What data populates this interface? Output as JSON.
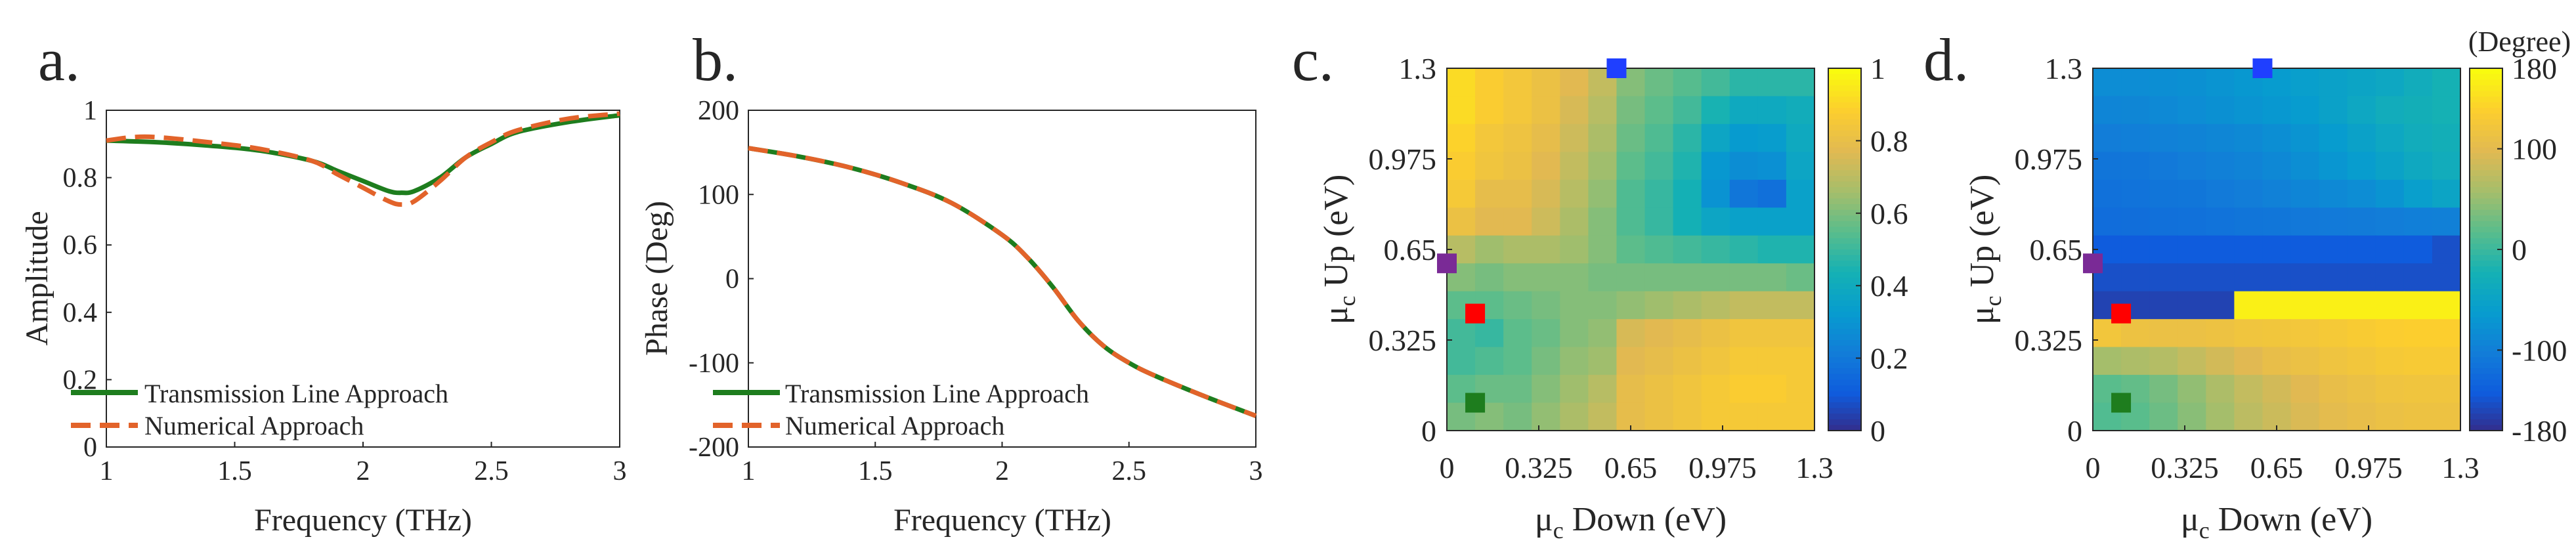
{
  "chart_data": [
    {
      "type": "line",
      "panel_label": "a.",
      "xlabel": "Frequency (THz)",
      "ylabel": "Amplitude",
      "xlim": [
        1,
        3
      ],
      "ylim": [
        0,
        1
      ],
      "xticks": [
        "1",
        "1.5",
        "2",
        "2.5",
        "3"
      ],
      "yticks": [
        "0",
        "0.2",
        "0.4",
        "0.6",
        "0.8",
        "1"
      ],
      "legend_position": "bottom-left",
      "series": [
        {
          "name": "Transmission Line Approach",
          "color": "#1e7d1e",
          "style": "solid",
          "x": [
            1,
            1.2,
            1.4,
            1.6,
            1.8,
            1.9,
            2,
            2.1,
            2.15,
            2.2,
            2.3,
            2.4,
            2.5,
            2.6,
            2.8,
            3
          ],
          "y": [
            0.91,
            0.905,
            0.895,
            0.88,
            0.85,
            0.82,
            0.79,
            0.76,
            0.755,
            0.76,
            0.8,
            0.86,
            0.9,
            0.935,
            0.965,
            0.985
          ]
        },
        {
          "name": "Numerical Approach",
          "color": "#e2632a",
          "style": "dashed",
          "x": [
            1,
            1.1,
            1.2,
            1.4,
            1.6,
            1.8,
            1.9,
            2,
            2.1,
            2.15,
            2.2,
            2.3,
            2.4,
            2.5,
            2.6,
            2.8,
            3
          ],
          "y": [
            0.91,
            0.92,
            0.92,
            0.905,
            0.885,
            0.85,
            0.81,
            0.77,
            0.73,
            0.72,
            0.73,
            0.79,
            0.86,
            0.905,
            0.94,
            0.975,
            0.99
          ]
        }
      ]
    },
    {
      "type": "line",
      "panel_label": "b.",
      "xlabel": "Frequency (THz)",
      "ylabel": "Phase (Deg)",
      "xlim": [
        1,
        3
      ],
      "ylim": [
        -200,
        200
      ],
      "xticks": [
        "1",
        "1.5",
        "2",
        "2.5",
        "3"
      ],
      "yticks": [
        "-200",
        "-100",
        "0",
        "100",
        "200"
      ],
      "legend_position": "bottom-left",
      "series": [
        {
          "name": "Transmission Line Approach",
          "color": "#1e7d1e",
          "style": "solid",
          "x": [
            1,
            1.2,
            1.4,
            1.6,
            1.8,
            2,
            2.1,
            2.2,
            2.3,
            2.4,
            2.5,
            2.6,
            2.8,
            3
          ],
          "y": [
            155,
            145,
            132,
            114,
            90,
            52,
            25,
            -10,
            -50,
            -80,
            -100,
            -115,
            -140,
            -163
          ]
        },
        {
          "name": "Numerical Approach",
          "color": "#e2632a",
          "style": "dashed",
          "x": [
            1,
            1.2,
            1.4,
            1.6,
            1.8,
            2,
            2.1,
            2.2,
            2.3,
            2.4,
            2.5,
            2.6,
            2.8,
            3
          ],
          "y": [
            155,
            145,
            132,
            114,
            90,
            52,
            25,
            -10,
            -50,
            -80,
            -100,
            -115,
            -140,
            -163
          ]
        }
      ]
    },
    {
      "type": "heatmap",
      "panel_label": "c.",
      "xlabel": "μc Down (eV)",
      "xlabel_sym": "μ",
      "xlabel_sub": "c",
      "xlabel_rest": " Down (eV)",
      "ylabel": "μc Up (eV)",
      "ylabel_sym": "μ",
      "ylabel_sub": "c",
      "ylabel_rest": " Up (eV)",
      "xlim": [
        0,
        1.3
      ],
      "ylim": [
        0,
        1.3
      ],
      "xticks": [
        "0",
        "0.325",
        "0.65",
        "0.975",
        "1.3"
      ],
      "yticks": [
        "0",
        "0.325",
        "0.65",
        "0.975",
        "1.3"
      ],
      "colorbar_range": [
        0,
        1
      ],
      "colorbar_ticks": [
        "0",
        "0.2",
        "0.4",
        "0.6",
        "0.8",
        "1"
      ],
      "colorbar_title": "",
      "rows_top_to_bottom": [
        [
          0.92,
          0.88,
          0.85,
          0.82,
          0.78,
          0.72,
          0.62,
          0.58,
          0.55,
          0.52,
          0.48,
          0.48,
          0.48
        ],
        [
          0.92,
          0.88,
          0.85,
          0.82,
          0.76,
          0.7,
          0.6,
          0.56,
          0.52,
          0.45,
          0.4,
          0.4,
          0.42
        ],
        [
          0.9,
          0.85,
          0.83,
          0.8,
          0.74,
          0.68,
          0.58,
          0.54,
          0.48,
          0.38,
          0.33,
          0.34,
          0.4
        ],
        [
          0.88,
          0.84,
          0.82,
          0.78,
          0.72,
          0.66,
          0.56,
          0.52,
          0.46,
          0.32,
          0.28,
          0.29,
          0.38
        ],
        [
          0.86,
          0.8,
          0.8,
          0.76,
          0.7,
          0.64,
          0.54,
          0.5,
          0.44,
          0.3,
          0.2,
          0.18,
          0.36
        ],
        [
          0.82,
          0.78,
          0.78,
          0.74,
          0.68,
          0.62,
          0.54,
          0.5,
          0.44,
          0.38,
          0.36,
          0.36,
          0.36
        ],
        [
          0.7,
          0.66,
          0.68,
          0.68,
          0.66,
          0.62,
          0.56,
          0.54,
          0.52,
          0.5,
          0.48,
          0.46,
          0.46
        ],
        [
          0.62,
          0.6,
          0.62,
          0.62,
          0.62,
          0.6,
          0.6,
          0.6,
          0.6,
          0.6,
          0.6,
          0.6,
          0.58
        ],
        [
          0.56,
          0.56,
          0.58,
          0.6,
          0.62,
          0.62,
          0.64,
          0.66,
          0.68,
          0.7,
          0.72,
          0.72,
          0.72
        ],
        [
          0.52,
          0.5,
          0.56,
          0.58,
          0.62,
          0.64,
          0.76,
          0.78,
          0.8,
          0.82,
          0.84,
          0.84,
          0.84
        ],
        [
          0.52,
          0.54,
          0.56,
          0.6,
          0.64,
          0.66,
          0.78,
          0.8,
          0.82,
          0.84,
          0.86,
          0.86,
          0.86
        ],
        [
          0.56,
          0.58,
          0.58,
          0.62,
          0.66,
          0.7,
          0.8,
          0.82,
          0.84,
          0.86,
          0.88,
          0.88,
          0.86
        ],
        [
          0.6,
          0.62,
          0.6,
          0.64,
          0.68,
          0.72,
          0.8,
          0.82,
          0.84,
          0.86,
          0.86,
          0.86,
          0.86
        ]
      ],
      "markers": [
        {
          "name": "blue-marker",
          "color": "#1f3fff",
          "x": 0.6,
          "y": 1.3
        },
        {
          "name": "purple-marker",
          "color": "#7a2a96",
          "x": 0,
          "y": 0.6
        },
        {
          "name": "red-marker",
          "color": "#ff0000",
          "x": 0.1,
          "y": 0.42
        },
        {
          "name": "green-marker",
          "color": "#1e7d1e",
          "x": 0.1,
          "y": 0.1
        }
      ]
    },
    {
      "type": "heatmap",
      "panel_label": "d.",
      "xlabel": "μc Down (eV)",
      "xlabel_sym": "μ",
      "xlabel_sub": "c",
      "xlabel_rest": " Down (eV)",
      "ylabel": "μc Up (eV)",
      "ylabel_sym": "μ",
      "ylabel_sub": "c",
      "ylabel_rest": " Up (eV)",
      "xlim": [
        0,
        1.3
      ],
      "ylim": [
        0,
        1.3
      ],
      "xticks": [
        "0",
        "0.325",
        "0.65",
        "0.975",
        "1.3"
      ],
      "yticks": [
        "0",
        "0.325",
        "0.65",
        "0.975",
        "1.3"
      ],
      "colorbar_range": [
        -180,
        180
      ],
      "colorbar_ticks": [
        "-180",
        "-100",
        "0",
        "100",
        "180"
      ],
      "colorbar_title": "(Degree)",
      "rows_top_to_bottom": [
        [
          -80,
          -80,
          -78,
          -75,
          -70,
          -65,
          -60,
          -55,
          -50,
          -45,
          -40,
          -30,
          -20
        ],
        [
          -90,
          -88,
          -85,
          -80,
          -75,
          -70,
          -65,
          -60,
          -50,
          -40,
          -30,
          -25,
          -20
        ],
        [
          -100,
          -98,
          -95,
          -92,
          -88,
          -84,
          -78,
          -70,
          -60,
          -50,
          -40,
          -30,
          -25
        ],
        [
          -110,
          -108,
          -105,
          -100,
          -96,
          -92,
          -86,
          -78,
          -68,
          -58,
          -48,
          -38,
          -30
        ],
        [
          -115,
          -112,
          -110,
          -108,
          -104,
          -100,
          -95,
          -90,
          -85,
          -80,
          -70,
          -55,
          -45
        ],
        [
          -120,
          -118,
          -116,
          -114,
          -112,
          -110,
          -108,
          -106,
          -104,
          -102,
          -100,
          -98,
          -96
        ],
        [
          -140,
          -140,
          -140,
          -140,
          -140,
          -140,
          -140,
          -140,
          -140,
          -140,
          -140,
          -140,
          -150
        ],
        [
          -150,
          -150,
          -150,
          -150,
          -150,
          -150,
          -150,
          -150,
          -150,
          -150,
          -150,
          -150,
          -150
        ],
        [
          -160,
          -160,
          -160,
          -160,
          -160,
          170,
          170,
          170,
          170,
          170,
          170,
          170,
          170
        ],
        [
          125,
          118,
          115,
          115,
          118,
          122,
          124,
          126,
          130,
          134,
          138,
          140,
          140
        ],
        [
          60,
          65,
          70,
          80,
          90,
          100,
          110,
          115,
          120,
          125,
          130,
          132,
          132
        ],
        [
          20,
          25,
          35,
          50,
          65,
          80,
          90,
          100,
          110,
          115,
          120,
          122,
          122
        ],
        [
          15,
          20,
          30,
          45,
          60,
          75,
          85,
          95,
          105,
          110,
          115,
          118,
          118
        ]
      ],
      "markers": [
        {
          "name": "blue-marker",
          "color": "#1f3fff",
          "x": 0.6,
          "y": 1.3
        },
        {
          "name": "purple-marker",
          "color": "#7a2a96",
          "x": 0,
          "y": 0.6
        },
        {
          "name": "red-marker",
          "color": "#ff0000",
          "x": 0.1,
          "y": 0.42
        },
        {
          "name": "green-marker",
          "color": "#1e7d1e",
          "x": 0.1,
          "y": 0.1
        }
      ]
    }
  ]
}
